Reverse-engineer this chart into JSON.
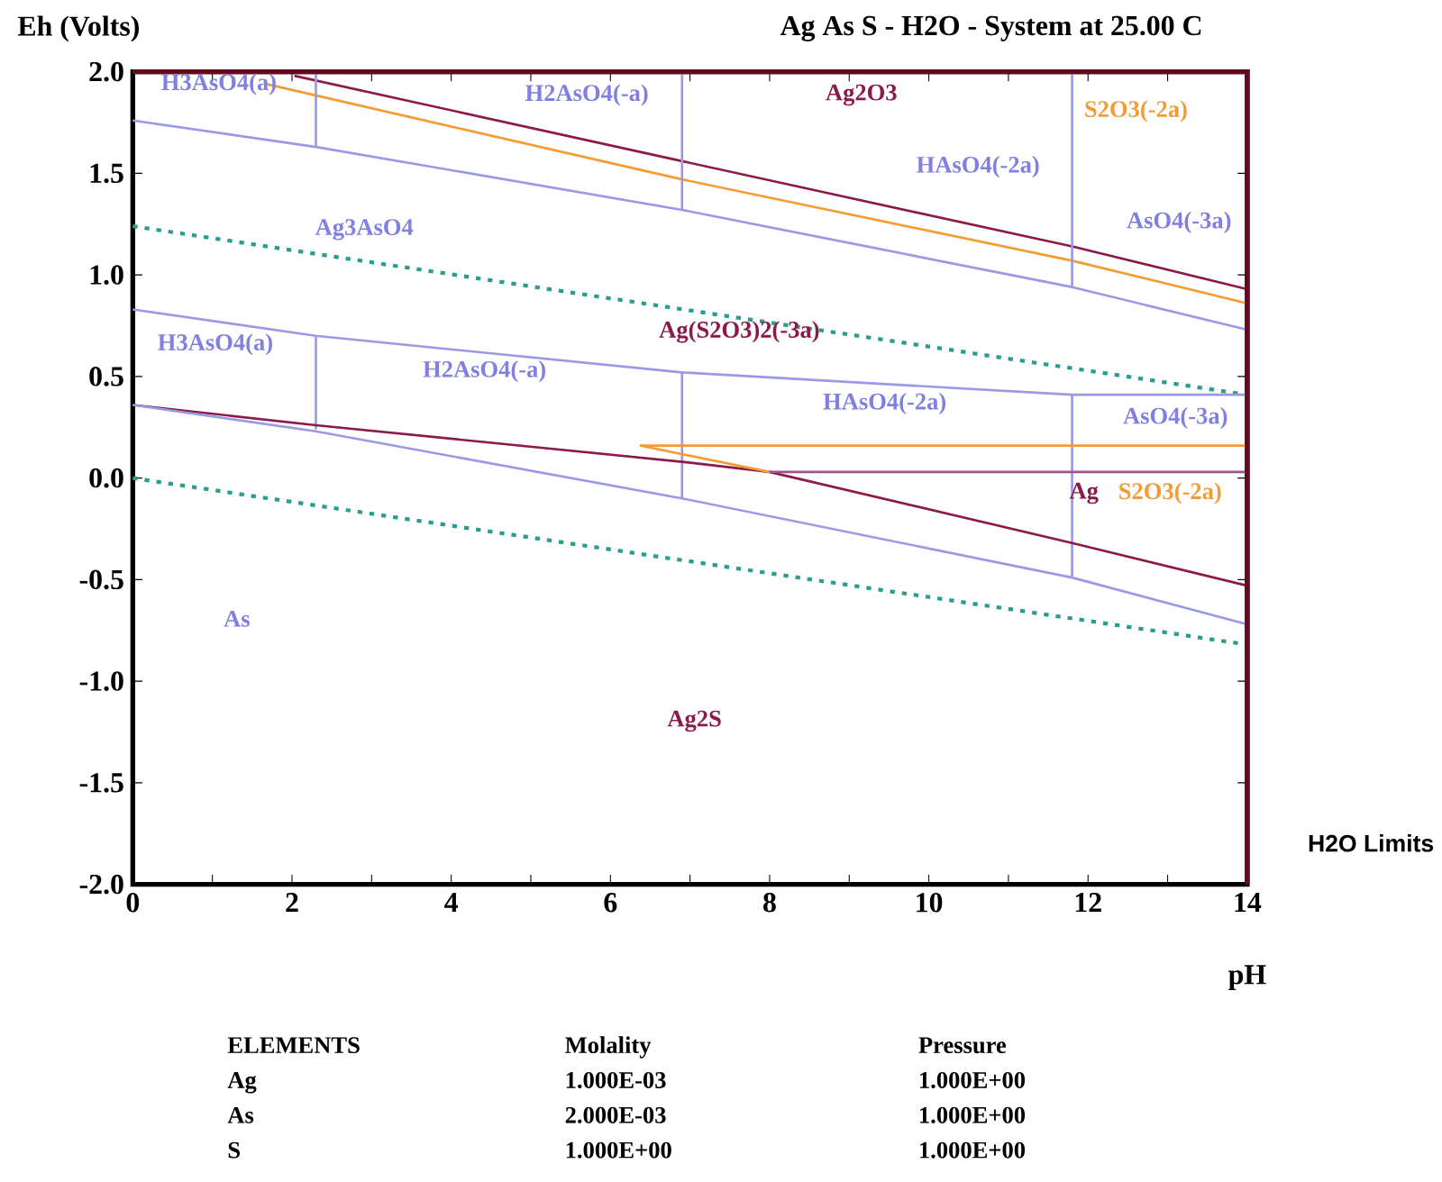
{
  "chart_data": {
    "type": "line",
    "title": "Ag As S - H2O - System at 25.00 C",
    "xlabel": "pH",
    "ylabel": "Eh (Volts)",
    "xlim": [
      0,
      14
    ],
    "ylim": [
      -2,
      2
    ],
    "xticks": [
      0,
      {
        "value": 1,
        "label": null
      },
      2,
      {
        "value": 3,
        "label": null
      },
      4,
      {
        "value": 5,
        "label": null
      },
      6,
      {
        "value": 7,
        "label": null
      },
      8,
      {
        "value": 9,
        "label": null
      },
      10,
      {
        "value": 11,
        "label": null
      },
      12,
      {
        "value": 13,
        "label": null
      },
      14
    ],
    "yticks": [
      {
        "value": -2,
        "label": "-2.0"
      },
      {
        "value": -1.5,
        "label": "-1.5"
      },
      {
        "value": -1,
        "label": "-1.0"
      },
      {
        "value": -0.5,
        "label": "-0.5"
      },
      {
        "value": 0,
        "label": "0.0"
      },
      {
        "value": 0.5,
        "label": "0.5"
      },
      {
        "value": 1,
        "label": "1.0"
      },
      {
        "value": 1.5,
        "label": "1.5"
      },
      {
        "value": 2,
        "label": "2.0"
      }
    ],
    "grid": false,
    "series": [
      {
        "color": "#8b1a4a",
        "x": [
          2.03,
          6.9,
          11.8,
          14
        ],
        "values": [
          1.98,
          1.56,
          1.14,
          0.93
        ]
      },
      {
        "color": "#f39c33",
        "x": [
          1.67,
          6.9,
          11.8,
          14
        ],
        "values": [
          1.94,
          1.47,
          1.07,
          0.86
        ]
      },
      {
        "color": "#9999e6",
        "x": [
          0,
          2.3,
          6.9,
          11.8,
          14
        ],
        "values": [
          1.76,
          1.63,
          1.32,
          0.94,
          0.73
        ]
      },
      {
        "color": "#9999e6",
        "x": [
          2.3,
          2.3
        ],
        "values": [
          2.0,
          1.63
        ]
      },
      {
        "color": "#9999e6",
        "x": [
          6.9,
          6.9
        ],
        "values": [
          2.0,
          1.32
        ]
      },
      {
        "color": "#9999e6",
        "x": [
          11.8,
          11.8
        ],
        "values": [
          2.0,
          0.94
        ]
      },
      {
        "color": "#2a9d8f",
        "line_style": "dotted",
        "x": [
          0,
          14
        ],
        "values": [
          1.24,
          0.41
        ]
      },
      {
        "color": "#9999e6",
        "x": [
          0,
          2.3,
          6.9,
          11.8,
          14
        ],
        "values": [
          0.83,
          0.7,
          0.52,
          0.41,
          0.41
        ]
      },
      {
        "color": "#9999e6",
        "x": [
          2.3,
          2.3
        ],
        "values": [
          0.7,
          0.24
        ]
      },
      {
        "color": "#9999e6",
        "x": [
          6.9,
          6.9
        ],
        "values": [
          0.52,
          -0.1
        ]
      },
      {
        "color": "#9999e6",
        "x": [
          11.8,
          11.8
        ],
        "values": [
          0.41,
          -0.49
        ]
      },
      {
        "color": "#8b1a4a",
        "x": [
          0,
          2.3,
          6.9,
          8.0,
          11.8,
          14
        ],
        "values": [
          0.36,
          0.26,
          0.08,
          0.03,
          -0.32,
          -0.53
        ]
      },
      {
        "color": "#9999e6",
        "x": [
          0,
          2.3,
          6.9,
          11.8,
          14
        ],
        "values": [
          0.36,
          0.23,
          -0.1,
          -0.49,
          -0.72
        ]
      },
      {
        "color": "#f39c33",
        "x": [
          6.37,
          14
        ],
        "values": [
          0.16,
          0.16
        ]
      },
      {
        "color": "#f39c33",
        "x": [
          6.37,
          8.0
        ],
        "values": [
          0.16,
          0.03
        ]
      },
      {
        "color": "#a0508a",
        "x": [
          8.0,
          14
        ],
        "values": [
          0.03,
          0.03
        ]
      },
      {
        "color": "#2a9d8f",
        "line_style": "dotted",
        "x": [
          0,
          14
        ],
        "values": [
          0,
          -0.82
        ]
      }
    ],
    "annotations": [
      "H3AsO4(a)",
      "H2AsO4(-a)",
      "Ag2O3",
      "S2O3(-2a)",
      "HAsO4(-2a)",
      "AsO4(-3a)",
      "Ag3AsO4",
      "H3AsO4(a)",
      "H2AsO4(-a)",
      "Ag(S2O3)2(-3a)",
      "HAsO4(-2a)",
      "AsO4(-3a)",
      "Ag",
      "S2O3(-2a)",
      "As",
      "Ag2S",
      "H2O Limits",
      "ELEMENTS",
      "Molality",
      "Pressure",
      "Ag",
      "1.000E-03",
      "1.000E+00",
      "As",
      "2.000E-03",
      "1.000E+00",
      "S",
      "1.000E+00",
      "1.000E+00"
    ]
  }
}
